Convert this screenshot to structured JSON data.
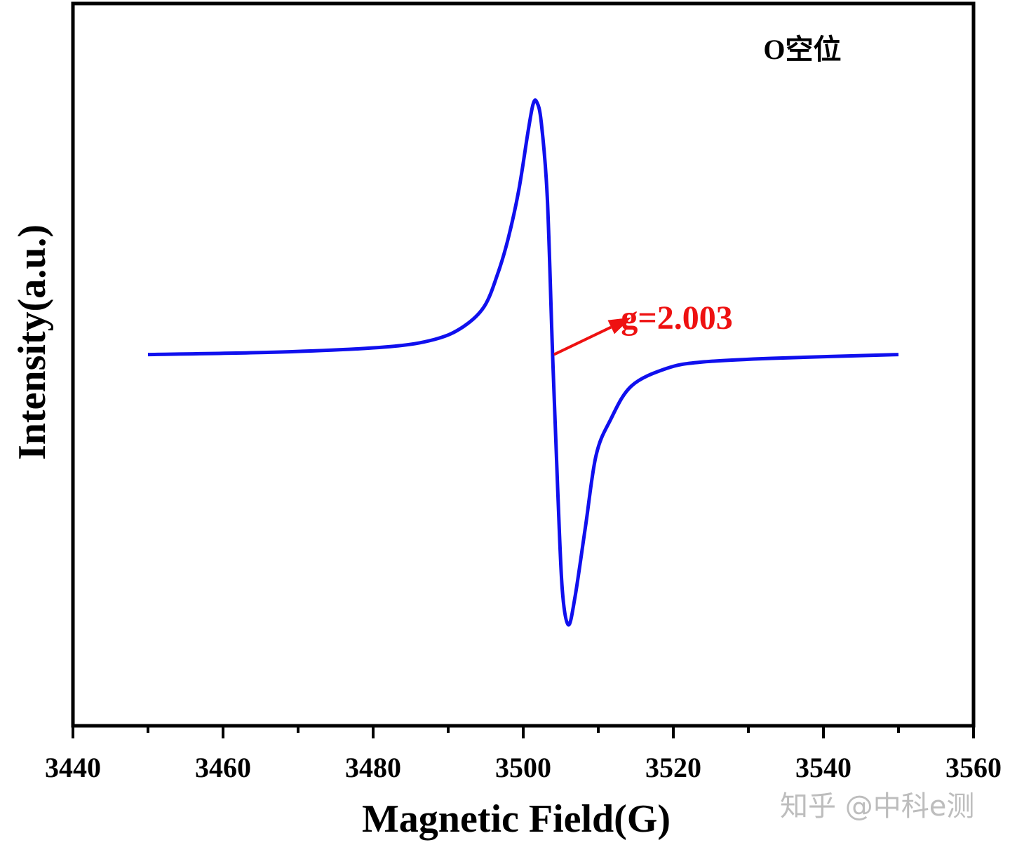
{
  "chart_data": {
    "type": "line",
    "title": "",
    "xlabel": "Magnetic Field(G)",
    "ylabel": "Intensity(a.u.)",
    "xlim": [
      3440,
      3560
    ],
    "ylim": [
      -1.47,
      1.39
    ],
    "x_ticks": [
      3440,
      3460,
      3480,
      3500,
      3520,
      3540,
      3560
    ],
    "x_tick_labels": [
      "3440",
      "3460",
      "3480",
      "3500",
      "3520",
      "3540",
      "3560"
    ],
    "x_minor_step": 10,
    "y_ticks_shown": false,
    "grid": false,
    "series": [
      {
        "color": "#1010ee",
        "x": [
          3450,
          3467.7,
          3481.7,
          3488.2,
          3492,
          3494.8,
          3496.6,
          3498,
          3499.4,
          3500.6,
          3501.3,
          3501.8,
          3502.4,
          3503.2,
          3503.9,
          3504.6,
          3505.2,
          3506.0,
          3506.9,
          3508.3,
          3509.7,
          3511.6,
          3514.4,
          3519.1,
          3523.7,
          3533.1,
          3550
        ],
        "y": [
          0.0,
          0.01,
          0.03,
          0.06,
          0.11,
          0.19,
          0.32,
          0.46,
          0.65,
          0.875,
          0.99,
          1.0,
          0.92,
          0.625,
          0.01,
          -0.54,
          -0.93,
          -1.07,
          -0.96,
          -0.68,
          -0.4,
          -0.26,
          -0.125,
          -0.055,
          -0.03,
          -0.015,
          0.0
        ]
      }
    ],
    "annotations": [
      {
        "text": "O空位",
        "x": 3532,
        "y": 1.17,
        "color": "#000000"
      },
      {
        "text": "g=2.003",
        "x": 3520.5,
        "y": 0.19,
        "color": "#ee1111",
        "arrow": {
          "from": [
            3504.1,
            0.0
          ],
          "to": [
            3514.4,
            0.147
          ]
        }
      }
    ]
  },
  "watermark": "知乎 @中科e测"
}
